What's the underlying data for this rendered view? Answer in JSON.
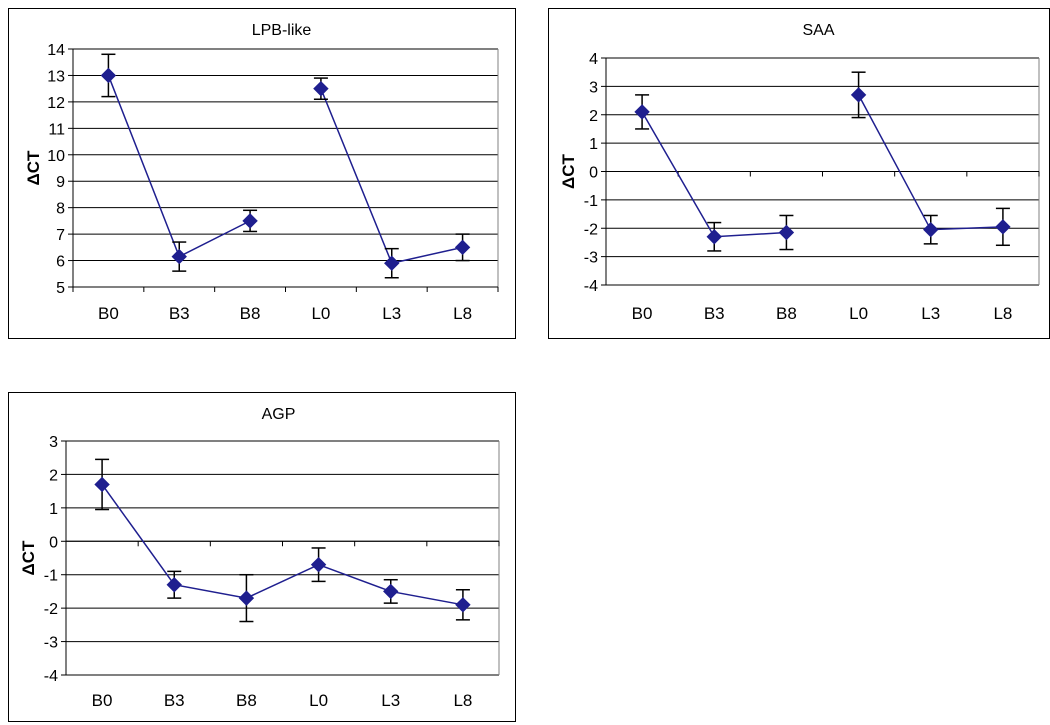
{
  "chart_data": [
    {
      "type": "line",
      "title": "LPB-like",
      "ylabel": "ΔCT",
      "xlabel": "",
      "categories": [
        "B0",
        "B3",
        "B8",
        "L0",
        "L3",
        "L8"
      ],
      "ylim": [
        5,
        14
      ],
      "yticks": [
        5,
        6,
        7,
        8,
        9,
        10,
        11,
        12,
        13,
        14
      ],
      "series": [
        {
          "segments": [
            [
              0,
              1,
              2
            ],
            [
              3,
              4,
              5
            ]
          ],
          "values": [
            13.0,
            6.15,
            7.5,
            12.5,
            5.9,
            6.5
          ],
          "error": [
            0.8,
            0.55,
            0.4,
            0.4,
            0.55,
            0.5
          ]
        }
      ],
      "color": "#1f1f8f",
      "grid": true,
      "legend": "none"
    },
    {
      "type": "line",
      "title": "SAA",
      "ylabel": "ΔCT",
      "xlabel": "",
      "categories": [
        "B0",
        "B3",
        "B8",
        "L0",
        "L3",
        "L8"
      ],
      "ylim": [
        -4,
        4
      ],
      "yticks": [
        -4,
        -3,
        -2,
        -1,
        0,
        1,
        2,
        3,
        4
      ],
      "series": [
        {
          "segments": [
            [
              0,
              1,
              2
            ],
            [
              3,
              4,
              5
            ]
          ],
          "values": [
            2.1,
            -2.3,
            -2.15,
            2.7,
            -2.05,
            -1.95
          ],
          "error": [
            0.6,
            0.5,
            0.6,
            0.8,
            0.5,
            0.65
          ]
        }
      ],
      "color": "#1f1f8f",
      "grid": true,
      "legend": "none"
    },
    {
      "type": "line",
      "title": "AGP",
      "ylabel": "ΔCT",
      "xlabel": "",
      "categories": [
        "B0",
        "B3",
        "B8",
        "L0",
        "L3",
        "L8"
      ],
      "ylim": [
        -4,
        3
      ],
      "yticks": [
        -4,
        -3,
        -2,
        -1,
        0,
        1,
        2,
        3
      ],
      "series": [
        {
          "segments": [
            [
              0,
              1,
              2,
              3,
              4,
              5
            ]
          ],
          "values": [
            1.7,
            -1.3,
            -1.7,
            -0.7,
            -1.5,
            -1.9
          ],
          "error": [
            0.75,
            0.4,
            0.7,
            0.5,
            0.35,
            0.45
          ]
        }
      ],
      "color": "#1f1f8f",
      "grid": true,
      "legend": "none"
    }
  ]
}
